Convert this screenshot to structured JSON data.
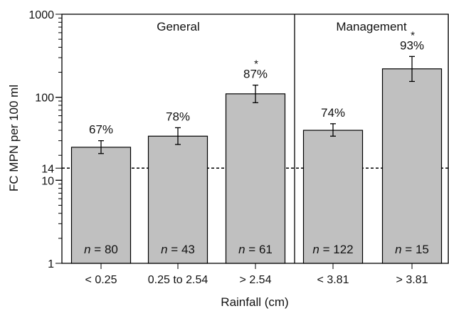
{
  "chart_data": {
    "type": "bar",
    "xlabel": "Rainfall (cm)",
    "ylabel": "FC MPN per 100 ml",
    "yscale": "log",
    "ylim": [
      1,
      1000
    ],
    "yticks": [
      {
        "value": 1,
        "label": "1"
      },
      {
        "value": 10,
        "label": "10"
      },
      {
        "value": 14,
        "label": "14"
      },
      {
        "value": 100,
        "label": "100"
      },
      {
        "value": 1000,
        "label": "1000"
      }
    ],
    "reference_line": {
      "value": 14,
      "style": "dashed"
    },
    "panels": [
      {
        "title": "General",
        "bars": 3
      },
      {
        "title": "Management",
        "bars": 2
      }
    ],
    "bars": [
      {
        "category": "< 0.25",
        "value": 25,
        "err_low": 21,
        "err_high": 30,
        "pct_label": "67%",
        "star": "",
        "n_label": "80"
      },
      {
        "category": "0.25 to 2.54",
        "value": 34,
        "err_low": 27,
        "err_high": 43,
        "pct_label": "78%",
        "star": "",
        "n_label": "43"
      },
      {
        "category": "> 2.54",
        "value": 110,
        "err_low": 86,
        "err_high": 140,
        "pct_label": "87%",
        "star": "*",
        "n_label": "61"
      },
      {
        "category": "< 3.81",
        "value": 40,
        "err_low": 34,
        "err_high": 48,
        "pct_label": "74%",
        "star": "",
        "n_label": "122"
      },
      {
        "category": "> 3.81",
        "value": 220,
        "err_low": 155,
        "err_high": 310,
        "pct_label": "93%",
        "star": "*",
        "n_label": "15"
      }
    ],
    "n_prefix": "n",
    "n_sep": " = ",
    "bar_color": "#c0c0c0",
    "grid": false
  }
}
